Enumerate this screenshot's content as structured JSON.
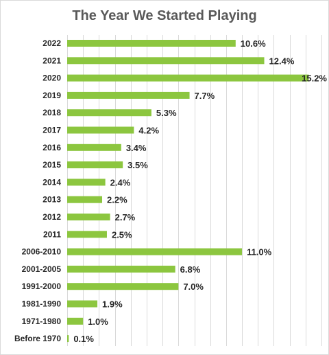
{
  "chart_data": {
    "type": "bar",
    "orientation": "horizontal",
    "title": "The Year We Started Playing",
    "categories": [
      "2022",
      "2021",
      "2020",
      "2019",
      "2018",
      "2017",
      "2016",
      "2015",
      "2014",
      "2013",
      "2012",
      "2011",
      "2006-2010",
      "2001-2005",
      "1991-2000",
      "1981-1990",
      "1971-1980",
      "Before 1970"
    ],
    "values": [
      10.6,
      12.4,
      15.2,
      7.7,
      5.3,
      4.2,
      3.4,
      3.5,
      2.4,
      2.2,
      2.7,
      2.5,
      11.0,
      6.8,
      7.0,
      1.9,
      1.0,
      0.1
    ],
    "data_labels": [
      "10.6%",
      "12.4%",
      "15.2%",
      "7.7%",
      "5.3%",
      "4.2%",
      "3.4%",
      "3.5%",
      "2.4%",
      "2.2%",
      "2.7%",
      "2.5%",
      "11.0%",
      "6.8%",
      "7.0%",
      "1.9%",
      "1.0%",
      "0.1%"
    ],
    "xlim": [
      0,
      16
    ],
    "grid": true,
    "legend": "none",
    "bar_color": "#8cc63f"
  }
}
